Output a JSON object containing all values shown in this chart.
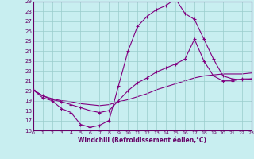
{
  "xlabel": "Windchill (Refroidissement éolien,°C)",
  "xlim": [
    0,
    23
  ],
  "ylim": [
    16,
    29
  ],
  "xticks": [
    0,
    1,
    2,
    3,
    4,
    5,
    6,
    7,
    8,
    9,
    10,
    11,
    12,
    13,
    14,
    15,
    16,
    17,
    18,
    19,
    20,
    21,
    22,
    23
  ],
  "yticks": [
    16,
    17,
    18,
    19,
    20,
    21,
    22,
    23,
    24,
    25,
    26,
    27,
    28,
    29
  ],
  "bg_color": "#c8eef0",
  "line_color": "#800080",
  "grid_color": "#99cccc",
  "curve1_x": [
    0,
    1,
    2,
    3,
    4,
    5,
    6,
    7,
    8,
    9,
    10,
    11,
    12,
    13,
    14,
    15,
    16,
    17,
    18,
    19,
    20,
    21,
    22,
    23
  ],
  "curve1_y": [
    20.1,
    19.3,
    19.0,
    18.2,
    17.8,
    16.6,
    16.3,
    16.5,
    17.0,
    20.5,
    24.0,
    26.5,
    27.5,
    28.2,
    28.6,
    29.3,
    27.8,
    27.2,
    25.2,
    23.2,
    21.5,
    21.2,
    21.1,
    21.2
  ],
  "curve2_x": [
    0,
    1,
    2,
    3,
    4,
    5,
    6,
    7,
    8,
    9,
    10,
    11,
    12,
    13,
    14,
    15,
    16,
    17,
    18,
    19,
    20,
    21,
    22,
    23
  ],
  "curve2_y": [
    20.1,
    19.5,
    19.1,
    18.9,
    18.6,
    18.3,
    18.0,
    17.8,
    18.0,
    19.0,
    20.0,
    20.8,
    21.3,
    21.9,
    22.3,
    22.7,
    23.2,
    25.2,
    23.0,
    21.5,
    21.0,
    21.0,
    21.2,
    21.2
  ],
  "curve3_x": [
    0,
    1,
    2,
    3,
    4,
    5,
    6,
    7,
    8,
    9,
    10,
    11,
    12,
    13,
    14,
    15,
    16,
    17,
    18,
    19,
    20,
    21,
    22,
    23
  ],
  "curve3_y": [
    20.1,
    19.5,
    19.2,
    19.0,
    18.9,
    18.7,
    18.6,
    18.5,
    18.6,
    18.9,
    19.1,
    19.4,
    19.7,
    20.1,
    20.4,
    20.7,
    21.0,
    21.3,
    21.5,
    21.6,
    21.7,
    21.7,
    21.7,
    21.8
  ]
}
